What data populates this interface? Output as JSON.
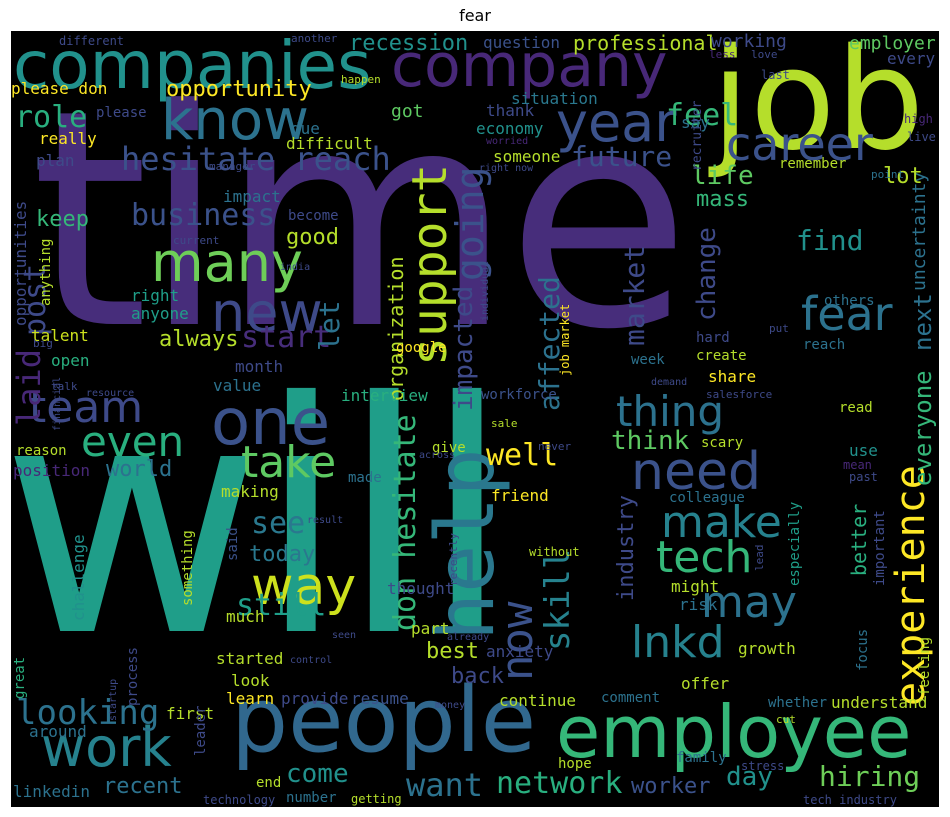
{
  "title": "fear",
  "colors": {
    "background": "#000000",
    "purple": "#482878",
    "blue": "#3b528b",
    "teal": "#21918c",
    "green": "#35b779",
    "lime": "#b5de2b",
    "yellow": "#fde725"
  },
  "words": [
    {
      "t": "time",
      "c": "#472d7b"
    },
    {
      "t": "will",
      "c": "#1f9e89"
    },
    {
      "t": "job",
      "c": "#b5de2b"
    },
    {
      "t": "companies",
      "c": "#21918c"
    },
    {
      "t": "company",
      "c": "#482878"
    },
    {
      "t": "people",
      "c": "#31688e"
    },
    {
      "t": "employee",
      "c": "#35b779"
    },
    {
      "t": "know",
      "c": "#2c728e"
    },
    {
      "t": "year",
      "c": "#3b528b"
    },
    {
      "t": "career",
      "c": "#3b528b"
    },
    {
      "t": "one",
      "c": "#3b528b"
    },
    {
      "t": "many",
      "c": "#6ece58"
    },
    {
      "t": "new",
      "c": "#3e4a89"
    },
    {
      "t": "help",
      "c": "#2a788e"
    },
    {
      "t": "need",
      "c": "#3b528b"
    },
    {
      "t": "work",
      "c": "#26828e"
    },
    {
      "t": "way",
      "c": "#cde11d"
    },
    {
      "t": "fear",
      "c": "#2c728e"
    },
    {
      "t": "support",
      "c": "#b5de2b"
    },
    {
      "t": "team",
      "c": "#3e4a89"
    },
    {
      "t": "even",
      "c": "#29af7f"
    },
    {
      "t": "take",
      "c": "#5ec962"
    },
    {
      "t": "make",
      "c": "#26828e"
    },
    {
      "t": "tech",
      "c": "#35b779"
    },
    {
      "t": "may",
      "c": "#2c728e"
    },
    {
      "t": "lnkd",
      "c": "#26828e"
    },
    {
      "t": "experience",
      "c": "#fde725"
    },
    {
      "t": "thing",
      "c": "#2c728e"
    },
    {
      "t": "hesitate reach",
      "c": "#3b528b"
    },
    {
      "t": "going",
      "c": "#3b528b"
    },
    {
      "t": "skill",
      "c": "#26828e"
    },
    {
      "t": "now",
      "c": "#3b528b"
    },
    {
      "t": "laid",
      "c": "#482878"
    },
    {
      "t": "role",
      "c": "#29af7f"
    },
    {
      "t": "feel",
      "c": "#35b779"
    },
    {
      "t": "future",
      "c": "#3b528b"
    },
    {
      "t": "recession",
      "c": "#21918c"
    },
    {
      "t": "professional",
      "c": "#b5de2b"
    },
    {
      "t": "opportunity",
      "c": "#fde725"
    },
    {
      "t": "business",
      "c": "#3b528b"
    },
    {
      "t": "post",
      "c": "#3e4a89"
    },
    {
      "t": "start",
      "c": "#472d7b"
    },
    {
      "t": "looking",
      "c": "#2c728e"
    },
    {
      "t": "want",
      "c": "#2c728e"
    },
    {
      "t": "network",
      "c": "#29af7f"
    },
    {
      "t": "hiring",
      "c": "#6ece58"
    },
    {
      "t": "don hesitate",
      "c": "#35b779"
    },
    {
      "t": "impacted",
      "c": "#3e4a89"
    },
    {
      "t": "affected",
      "c": "#2c728e"
    },
    {
      "t": "market",
      "c": "#3e4a89"
    },
    {
      "t": "life",
      "c": "#5ec962"
    },
    {
      "t": "find",
      "c": "#21918c"
    },
    {
      "t": "change",
      "c": "#3e4a89"
    },
    {
      "t": "still",
      "c": "#1f9e89"
    },
    {
      "t": "see",
      "c": "#2a788e"
    },
    {
      "t": "well",
      "c": "#fde725"
    },
    {
      "t": "think",
      "c": "#5ec962"
    },
    {
      "t": "come",
      "c": "#21918c"
    },
    {
      "t": "day",
      "c": "#21918c"
    },
    {
      "t": "worker",
      "c": "#3b528b"
    },
    {
      "t": "everyone",
      "c": "#35b779"
    },
    {
      "t": "next",
      "c": "#2c728e"
    },
    {
      "t": "uncertainty",
      "c": "#2c728e"
    },
    {
      "t": "organization",
      "c": "#b5de2b"
    },
    {
      "t": "let",
      "c": "#2c728e"
    },
    {
      "t": "world",
      "c": "#2c728e"
    },
    {
      "t": "today",
      "c": "#2a788e"
    },
    {
      "t": "back",
      "c": "#3e4a89"
    },
    {
      "t": "best",
      "c": "#b5de2b"
    },
    {
      "t": "recent",
      "c": "#2c728e"
    },
    {
      "t": "industry",
      "c": "#3e4a89"
    },
    {
      "t": "always",
      "c": "#b5de2b"
    },
    {
      "t": "good",
      "c": "#b5de2b"
    },
    {
      "t": "keep",
      "c": "#35b779"
    },
    {
      "t": "lot",
      "c": "#b5de2b"
    },
    {
      "t": "mass",
      "c": "#35b779"
    },
    {
      "t": "working",
      "c": "#3e4a89"
    },
    {
      "t": "employer",
      "c": "#5ec962"
    },
    {
      "t": "every",
      "c": "#3e4a89"
    },
    {
      "t": "please don",
      "c": "#fde725"
    },
    {
      "t": "question",
      "c": "#3b528b"
    },
    {
      "t": "situation",
      "c": "#2a788e"
    },
    {
      "t": "economy",
      "c": "#21918c"
    },
    {
      "t": "got",
      "c": "#5ec962"
    },
    {
      "t": "thank",
      "c": "#3e4a89"
    },
    {
      "t": "say",
      "c": "#2c728e"
    },
    {
      "t": "someone",
      "c": "#b5de2b"
    },
    {
      "t": "really",
      "c": "#fde725"
    },
    {
      "t": "plan",
      "c": "#3e4a89"
    },
    {
      "t": "difficult",
      "c": "#b5de2b"
    },
    {
      "t": "due",
      "c": "#2c728e"
    },
    {
      "t": "impact",
      "c": "#2c728e"
    },
    {
      "t": "become",
      "c": "#3e4a89"
    },
    {
      "t": "opportunities",
      "c": "#3e4a89"
    },
    {
      "t": "anything",
      "c": "#b5de2b"
    },
    {
      "t": "right",
      "c": "#1f9e89"
    },
    {
      "t": "anyone",
      "c": "#1f9e89"
    },
    {
      "t": "talent",
      "c": "#cde11d"
    },
    {
      "t": "open",
      "c": "#29af7f"
    },
    {
      "t": "month",
      "c": "#3e4a89"
    },
    {
      "t": "value",
      "c": "#2c728e"
    },
    {
      "t": "interview",
      "c": "#29af7f"
    },
    {
      "t": "reason",
      "c": "#b5de2b"
    },
    {
      "t": "position",
      "c": "#482878"
    },
    {
      "t": "making",
      "c": "#b5de2b"
    },
    {
      "t": "made",
      "c": "#2c728e"
    },
    {
      "t": "friend",
      "c": "#fde725"
    },
    {
      "t": "give",
      "c": "#b5de2b"
    },
    {
      "t": "challenge",
      "c": "#21918c"
    },
    {
      "t": "said",
      "c": "#3b528b"
    },
    {
      "t": "something",
      "c": "#b5de2b"
    },
    {
      "t": "thought",
      "c": "#3e4a89"
    },
    {
      "t": "much",
      "c": "#b5de2b"
    },
    {
      "t": "part",
      "c": "#b5de2b"
    },
    {
      "t": "anxiety",
      "c": "#3e4a89"
    },
    {
      "t": "great",
      "c": "#29af7f"
    },
    {
      "t": "process",
      "c": "#3e4a89"
    },
    {
      "t": "started",
      "c": "#b5de2b"
    },
    {
      "t": "look",
      "c": "#b5de2b"
    },
    {
      "t": "learn",
      "c": "#fde725"
    },
    {
      "t": "provide",
      "c": "#3e4a89"
    },
    {
      "t": "resume",
      "c": "#3b528b"
    },
    {
      "t": "first",
      "c": "#b5de2b"
    },
    {
      "t": "around",
      "c": "#2c728e"
    },
    {
      "t": "leader",
      "c": "#3e4a89"
    },
    {
      "t": "continue",
      "c": "#b5de2b"
    },
    {
      "t": "comment",
      "c": "#2c728e"
    },
    {
      "t": "offer",
      "c": "#b5de2b"
    },
    {
      "t": "growth",
      "c": "#b5de2b"
    },
    {
      "t": "whether",
      "c": "#2c728e"
    },
    {
      "t": "understand",
      "c": "#b5de2b"
    },
    {
      "t": "feeling",
      "c": "#b5de2b"
    },
    {
      "t": "focus",
      "c": "#2c728e"
    },
    {
      "t": "hope",
      "c": "#b5de2b"
    },
    {
      "t": "family",
      "c": "#2c728e"
    },
    {
      "t": "stress",
      "c": "#3e4a89"
    },
    {
      "t": "linkedin",
      "c": "#2c728e"
    },
    {
      "t": "end",
      "c": "#b5de2b"
    },
    {
      "t": "number",
      "c": "#2c728e"
    },
    {
      "t": "getting",
      "c": "#b5de2b"
    },
    {
      "t": "technology",
      "c": "#3e4a89"
    },
    {
      "t": "tech industry",
      "c": "#3e4a89"
    },
    {
      "t": "better",
      "c": "#29af7f"
    },
    {
      "t": "important",
      "c": "#3e4a89"
    },
    {
      "t": "especially",
      "c": "#1f9e89"
    },
    {
      "t": "might",
      "c": "#b5de2b"
    },
    {
      "t": "risk",
      "c": "#2c728e"
    },
    {
      "t": "colleague",
      "c": "#2c728e"
    },
    {
      "t": "scary",
      "c": "#b5de2b"
    },
    {
      "t": "use",
      "c": "#21918c"
    },
    {
      "t": "mean",
      "c": "#482878"
    },
    {
      "t": "past",
      "c": "#3e4a89"
    },
    {
      "t": "read",
      "c": "#b5de2b"
    },
    {
      "t": "workforce",
      "c": "#3b528b"
    },
    {
      "t": "salesforce",
      "c": "#3e4a89"
    },
    {
      "t": "share",
      "c": "#fde725"
    },
    {
      "t": "create",
      "c": "#b5de2b"
    },
    {
      "t": "week",
      "c": "#2c728e"
    },
    {
      "t": "hard",
      "c": "#3e4a89"
    },
    {
      "t": "reach",
      "c": "#2c728e"
    },
    {
      "t": "put",
      "c": "#3e4a89"
    },
    {
      "t": "others",
      "c": "#2c728e"
    },
    {
      "t": "google",
      "c": "#fde725"
    },
    {
      "t": "job market",
      "c": "#fde725"
    },
    {
      "t": "remember",
      "c": "#b5de2b"
    },
    {
      "t": "point",
      "c": "#2c728e"
    },
    {
      "t": "manager",
      "c": "#3e4a89"
    },
    {
      "t": "worried",
      "c": "#482878"
    },
    {
      "t": "right now",
      "c": "#3e4a89"
    },
    {
      "t": "recruiter",
      "c": "#3e4a89"
    },
    {
      "t": "high",
      "c": "#482878"
    },
    {
      "t": "live",
      "c": "#3e4a89"
    },
    {
      "t": "last",
      "c": "#3e4a89"
    },
    {
      "t": "less",
      "c": "#482878"
    },
    {
      "t": "love",
      "c": "#3e4a89"
    },
    {
      "t": "different",
      "c": "#3e4a89"
    },
    {
      "t": "another",
      "c": "#3e4a89"
    },
    {
      "t": "happen",
      "c": "#b5de2b"
    },
    {
      "t": "please",
      "c": "#3e4a89"
    },
    {
      "t": "current",
      "c": "#3e4a89"
    },
    {
      "t": "india",
      "c": "#3e4a89"
    },
    {
      "t": "individual",
      "c": "#3e4a89"
    },
    {
      "t": "big",
      "c": "#3e4a89"
    },
    {
      "t": "demand",
      "c": "#3e4a89"
    },
    {
      "t": "talk",
      "c": "#3e4a89"
    },
    {
      "t": "resource",
      "c": "#3e4a89"
    },
    {
      "t": "financial",
      "c": "#3e4a89"
    },
    {
      "t": "sale",
      "c": "#b5de2b"
    },
    {
      "t": "across",
      "c": "#3e4a89"
    },
    {
      "t": "never",
      "c": "#3e4a89"
    },
    {
      "t": "recently",
      "c": "#3e4a89"
    },
    {
      "t": "without",
      "c": "#b5de2b"
    },
    {
      "t": "result",
      "c": "#3e4a89"
    },
    {
      "t": "lead",
      "c": "#3e4a89"
    },
    {
      "t": "cut",
      "c": "#b5de2b"
    },
    {
      "t": "already",
      "c": "#3e4a89"
    },
    {
      "t": "seen",
      "c": "#3e4a89"
    },
    {
      "t": "control",
      "c": "#3e4a89"
    },
    {
      "t": "startup",
      "c": "#3e4a89"
    },
    {
      "t": "money",
      "c": "#3e4a89"
    }
  ]
}
